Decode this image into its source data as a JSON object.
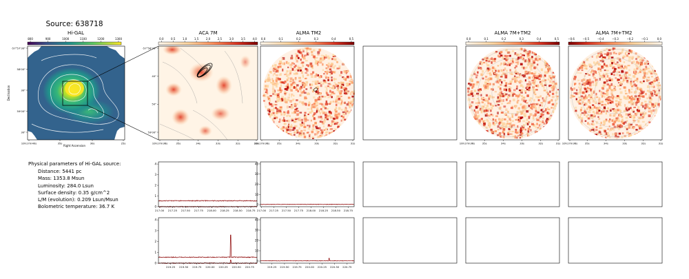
{
  "title": "Source: 638718",
  "panels": {
    "higal": {
      "title": "Hi-GAL",
      "colorbar_ticks": [
        "800",
        "900",
        "1000",
        "1100",
        "1200",
        "1300"
      ],
      "colorbar_colors": [
        "#3b0f70",
        "#31688e",
        "#21918c",
        "#35b779",
        "#90d743",
        "#fde725"
      ],
      "ytick_labels": [
        "-57°57'30\"",
        "58'00\"",
        "30\"",
        "59'00\"",
        "30\""
      ],
      "xtick_labels": [
        "10h17m40s",
        "35s",
        "30s",
        "25s"
      ],
      "xlabel": "Right Ascension",
      "ylabel": "Declination"
    },
    "aca7m": {
      "title": "ACA 7M",
      "colorbar_ticks": [
        "0.0",
        "0.5",
        "1.0",
        "1.5",
        "2.0",
        "2.5",
        "3.0",
        "3.5",
        "4.0"
      ],
      "ytick_labels": [
        "-57°58'30\"",
        "40\"",
        "50\"",
        "59'00\""
      ],
      "xtick_labels": [
        "10h17m36s",
        "35s",
        "34s",
        "33s",
        "32s",
        "31s"
      ]
    },
    "alma_tm2": {
      "title": "ALMA TM2",
      "colorbar_ticks": [
        "0.0",
        "0.1",
        "0.2",
        "0.3",
        "0.4",
        "0.5"
      ],
      "xtick_labels": [
        "10h17m36s",
        "35s",
        "34s",
        "33s",
        "32s",
        "31s"
      ]
    },
    "alma_7m_tm2_a": {
      "title": "ALMA 7M+TM2",
      "colorbar_ticks": [
        "0.0",
        "0.1",
        "0.2",
        "0.3",
        "0.4",
        "0.5"
      ],
      "xtick_labels": [
        "10h17m36s",
        "35s",
        "34s",
        "33s",
        "32s",
        "31s"
      ]
    },
    "alma_7m_tm2_b": {
      "title": "ALMA 7M+TM2",
      "colorbar_ticks": [
        "−0.6",
        "−0.5",
        "−0.4",
        "−0.3",
        "−0.2",
        "−0.1",
        "0.0"
      ],
      "xtick_labels": [
        "10h17m36s",
        "35s",
        "34s",
        "33s",
        "32s",
        "31s"
      ]
    }
  },
  "parameters": {
    "heading": "Physical parameters of Hi-GAL source:",
    "lines": [
      "Distance: 5441 pc",
      "Mass: 1353.8 Msun",
      "Luminosity: 284.0 Lsun",
      "Surface density: 0.35 g/cm^2",
      "L/M (evolution): 0.209 Lsun/Msun",
      "Bolometric temperature: 36.7 K"
    ]
  },
  "chart_data": [
    {
      "type": "line",
      "panel": "spectrum-aca-upper",
      "yticks": [
        "0",
        "1",
        "2",
        "3",
        "4"
      ],
      "ylim": [
        0,
        4.2
      ],
      "xticks": [
        "217.00",
        "217.25",
        "217.50",
        "217.75",
        "218.00",
        "218.25",
        "218.50",
        "218.75"
      ],
      "xlim": [
        216.98,
        218.87
      ],
      "series": [
        {
          "level": 0.55,
          "noise": 0.04,
          "spikes": []
        },
        {
          "level": 0.0,
          "noise": 0.04,
          "spikes": []
        }
      ],
      "color": "#8b0000"
    },
    {
      "type": "line",
      "panel": "spectrum-tm2-upper",
      "yticks": [
        "0",
        "10",
        "20",
        "30",
        "40"
      ],
      "ylim": [
        -2,
        42
      ],
      "xticks": [
        "217.00",
        "217.25",
        "217.50",
        "217.75",
        "218.00",
        "218.25",
        "218.50",
        "218.75"
      ],
      "xlim": [
        216.98,
        218.87
      ],
      "series": [
        {
          "level": 0.3,
          "noise": 0.25,
          "spikes": []
        }
      ],
      "color": "#8b0000"
    },
    {
      "type": "line",
      "panel": "spectrum-aca-lower",
      "yticks": [
        "0",
        "1",
        "2",
        "3",
        "4"
      ],
      "ylim": [
        0,
        4.2
      ],
      "xticks": [
        "219.25",
        "219.50",
        "219.75",
        "220.00",
        "220.25",
        "220.50",
        "220.75"
      ],
      "xlim": [
        219.02,
        220.89
      ],
      "series": [
        {
          "level": 0.55,
          "noise": 0.04,
          "spikes": [
            [
              220.39,
              2.05
            ]
          ]
        },
        {
          "level": 0.0,
          "noise": 0.04,
          "spikes": [
            [
              220.39,
              0.3
            ]
          ]
        }
      ],
      "color": "#8b0000"
    },
    {
      "type": "line",
      "panel": "spectrum-tm2-lower",
      "yticks": [
        "0",
        "10",
        "20",
        "30",
        "40"
      ],
      "ylim": [
        -2,
        42
      ],
      "xticks": [
        "219.25",
        "219.50",
        "219.75",
        "220.00",
        "220.25",
        "220.50",
        "220.75"
      ],
      "xlim": [
        219.02,
        220.89
      ],
      "series": [
        {
          "level": 0.3,
          "noise": 0.25,
          "spikes": [
            [
              220.39,
              2.5
            ]
          ]
        }
      ],
      "color": "#8b0000"
    }
  ]
}
